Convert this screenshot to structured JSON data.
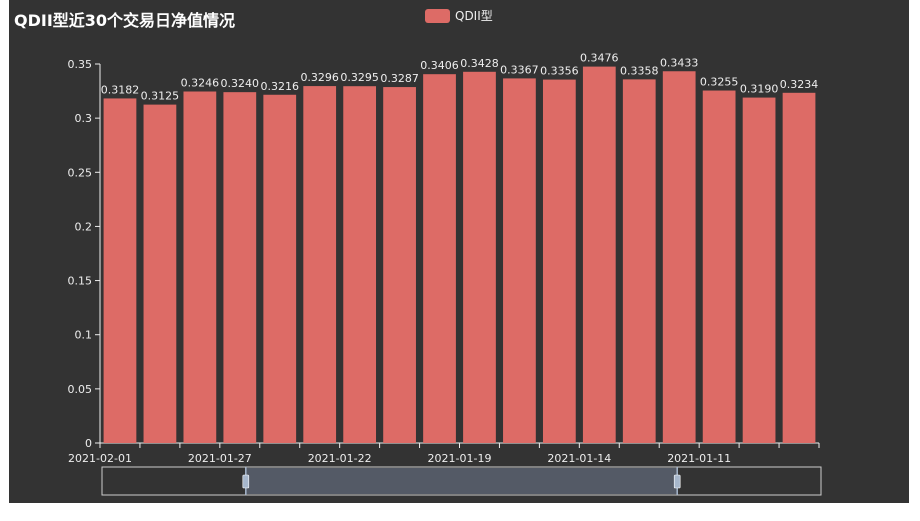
{
  "colors": {
    "background": "#333333",
    "bar": "#dd6b66",
    "axis": "#eeeeee",
    "text": "#eeeeee",
    "dataZoomFill": "#5a6270",
    "dataZoomBorder": "#cccccc",
    "handle": "#a7b7cc"
  },
  "chart_data": {
    "type": "bar",
    "title": "QDII型近30个交易日净值情况",
    "xlabel": "",
    "ylabel": "",
    "ylim": [
      0,
      0.35
    ],
    "yticks": [
      "0",
      "0.05",
      "0.1",
      "0.15",
      "0.2",
      "0.25",
      "0.3",
      "0.35"
    ],
    "xtick_labels": [
      "2021-02-01",
      "2021-01-27",
      "2021-01-22",
      "2021-01-19",
      "2021-01-14",
      "2021-01-11"
    ],
    "legend_position": "top-center",
    "grid": false,
    "series": [
      {
        "name": "QDII型",
        "values": [
          0.3182,
          0.3125,
          0.3246,
          0.324,
          0.3216,
          0.3296,
          0.3295,
          0.3287,
          0.3406,
          0.3428,
          0.3367,
          0.3356,
          0.3476,
          0.3358,
          0.3433,
          0.3255,
          0.319,
          0.3234
        ],
        "labels": [
          "0.3182",
          "0.3125",
          "0.3246",
          "0.3240",
          "0.3216",
          "0.3296",
          "0.3295",
          "0.3287",
          "0.3406",
          "0.3428",
          "0.3367",
          "0.3356",
          "0.3476",
          "0.3358",
          "0.3433",
          "0.3255",
          "0.3190",
          "0.3234"
        ]
      }
    ],
    "data_zoom": {
      "start": 0.2,
      "end": 0.8
    }
  }
}
